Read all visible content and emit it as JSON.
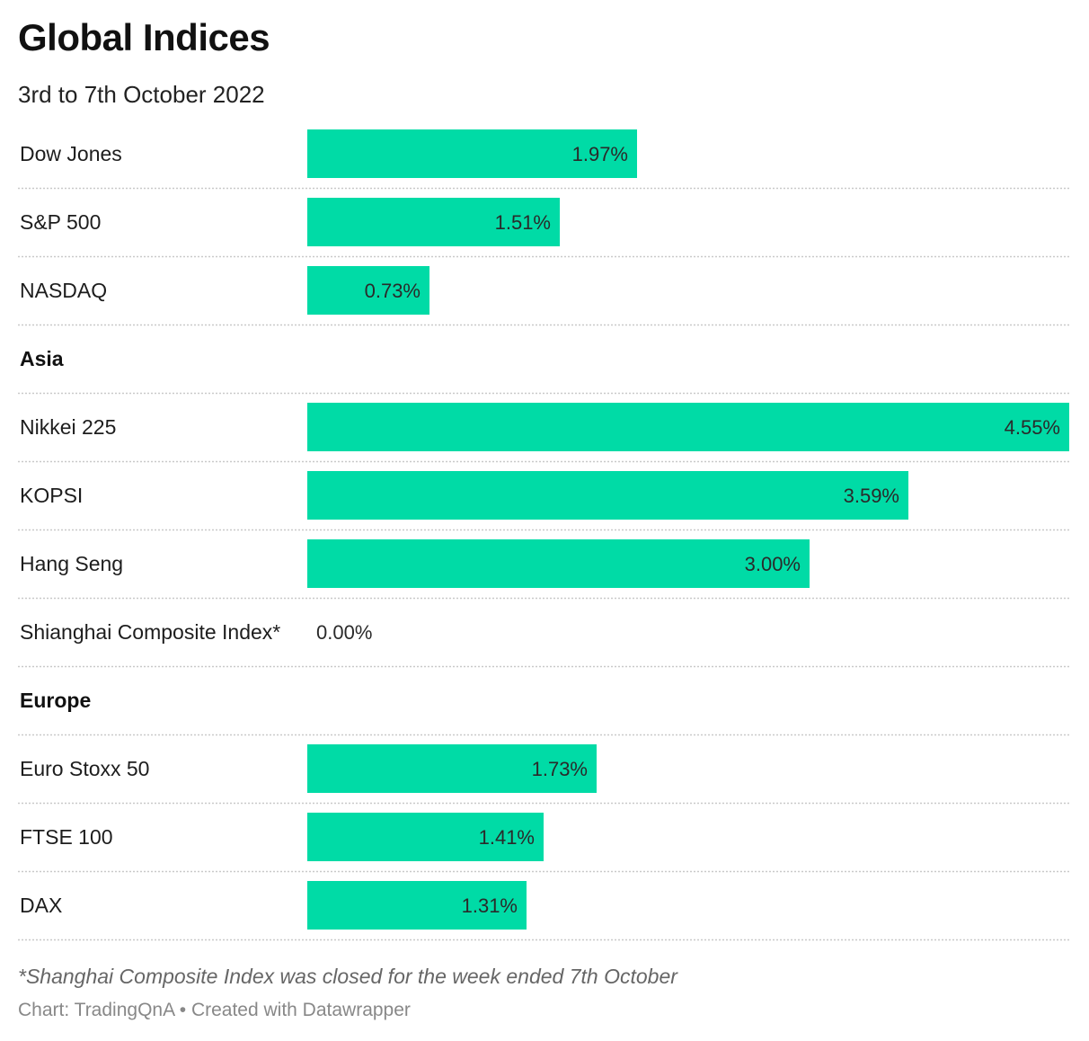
{
  "header": {
    "title": "Global Indices",
    "subtitle": "3rd to 7th October 2022"
  },
  "footer": {
    "note": "*Shanghai Composite Index was closed for the week ended 7th October",
    "credit": "Chart: TradingQnA • Created with Datawrapper"
  },
  "chart_data": {
    "type": "bar",
    "orientation": "horizontal",
    "title": "Global Indices",
    "subtitle": "3rd to 7th October 2022",
    "xlim": [
      0,
      4.55
    ],
    "value_suffix": "%",
    "bar_color": "#00dba6",
    "grid": false,
    "rows": [
      {
        "label": "Dow Jones",
        "value": 1.97,
        "display": "1.97%"
      },
      {
        "label": "S&P 500",
        "value": 1.51,
        "display": "1.51%"
      },
      {
        "label": "NASDAQ",
        "value": 0.73,
        "display": "0.73%"
      },
      {
        "group": "Asia"
      },
      {
        "label": "Nikkei 225",
        "value": 4.55,
        "display": "4.55%"
      },
      {
        "label": "KOPSI",
        "value": 3.59,
        "display": "3.59%"
      },
      {
        "label": "Hang Seng",
        "value": 3.0,
        "display": "3.00%"
      },
      {
        "label": "Shianghai Composite Index*",
        "value": 0.0,
        "display": "0.00%"
      },
      {
        "group": "Europe"
      },
      {
        "label": "Euro Stoxx 50",
        "value": 1.73,
        "display": "1.73%"
      },
      {
        "label": "FTSE 100",
        "value": 1.41,
        "display": "1.41%"
      },
      {
        "label": "DAX",
        "value": 1.31,
        "display": "1.31%"
      }
    ]
  }
}
